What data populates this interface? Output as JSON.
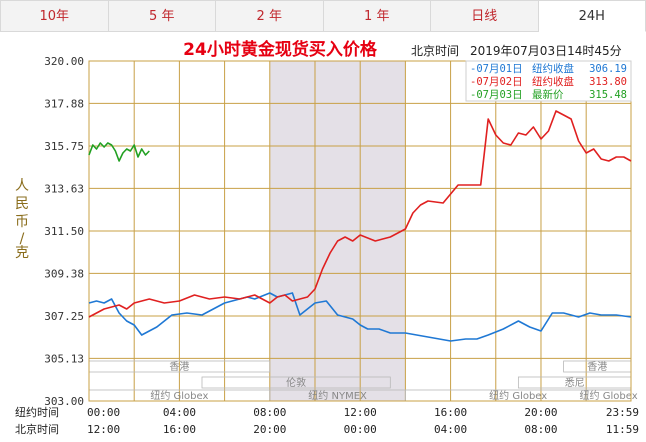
{
  "tabs": [
    {
      "label": "10年"
    },
    {
      "label": "5 年"
    },
    {
      "label": "2 年"
    },
    {
      "label": "1 年"
    },
    {
      "label": "日线"
    },
    {
      "label": "24H"
    }
  ],
  "active_tab": 5,
  "header": {
    "title": "24小时黄金现货买入价格",
    "time_label": "北京时间",
    "datetime": "2019年07月03日14时45分"
  },
  "colors": {
    "title": "#e60012",
    "grid": "#c8a046",
    "shade": "#e4e0e7",
    "axis_text": "#333333",
    "ylabel": "#8a6d1c"
  },
  "chart_data": {
    "type": "line",
    "ylabel": "人民币/克",
    "ylim": [
      303.0,
      320.0
    ],
    "y_ticks": [
      "320.00",
      "317.88",
      "315.75",
      "313.63",
      "311.50",
      "309.38",
      "307.25",
      "305.13",
      "303.00"
    ],
    "x_range_minutes": [
      0,
      1439
    ],
    "x_tick_rows": [
      {
        "label": "纽约时间",
        "ticks": [
          "00:00",
          "04:00",
          "08:00",
          "12:00",
          "16:00",
          "20:00",
          "23:59"
        ]
      },
      {
        "label": "北京时间",
        "ticks": [
          "12:00",
          "16:00",
          "20:00",
          "00:00",
          "04:00",
          "08:00",
          "11:59"
        ]
      }
    ],
    "grid": true,
    "legend_position": "top-right",
    "series": [
      {
        "name": "07月01日",
        "legend_label": "纽约收盘",
        "value_text": "306.19",
        "color": "#1f78d4",
        "x": [
          0,
          20,
          40,
          60,
          80,
          100,
          120,
          140,
          180,
          220,
          260,
          300,
          360,
          420,
          440,
          480,
          500,
          540,
          560,
          600,
          630,
          660,
          700,
          720,
          740,
          770,
          800,
          840,
          900,
          960,
          1000,
          1030,
          1060,
          1100,
          1140,
          1170,
          1200,
          1230,
          1260,
          1300,
          1330,
          1360,
          1400,
          1439
        ],
        "y": [
          307.9,
          308.0,
          307.9,
          308.1,
          307.4,
          307.0,
          306.8,
          306.3,
          306.7,
          307.3,
          307.4,
          307.3,
          307.9,
          308.2,
          308.1,
          308.4,
          308.2,
          308.4,
          307.3,
          307.9,
          308.0,
          307.3,
          307.1,
          306.8,
          306.6,
          306.6,
          306.4,
          306.4,
          306.2,
          306.0,
          306.1,
          306.1,
          306.3,
          306.6,
          307.0,
          306.7,
          306.5,
          307.4,
          307.4,
          307.2,
          307.4,
          307.3,
          307.3,
          307.2
        ]
      },
      {
        "name": "07月02日",
        "legend_label": "纽约收盘",
        "value_text": "313.80",
        "color": "#e02020",
        "x": [
          0,
          40,
          80,
          100,
          120,
          160,
          200,
          240,
          280,
          320,
          360,
          400,
          440,
          480,
          500,
          520,
          540,
          560,
          580,
          600,
          620,
          640,
          660,
          680,
          700,
          720,
          760,
          800,
          840,
          860,
          880,
          900,
          940,
          980,
          1000,
          1020,
          1040,
          1060,
          1080,
          1100,
          1120,
          1140,
          1160,
          1180,
          1200,
          1220,
          1240,
          1260,
          1280,
          1300,
          1320,
          1340,
          1360,
          1380,
          1400,
          1420,
          1439
        ],
        "y": [
          307.2,
          307.6,
          307.8,
          307.6,
          307.9,
          308.1,
          307.9,
          308.0,
          308.3,
          308.1,
          308.2,
          308.1,
          308.3,
          307.9,
          308.2,
          308.3,
          308.0,
          308.1,
          308.2,
          308.6,
          309.6,
          310.4,
          311.0,
          311.2,
          311.0,
          311.3,
          311.0,
          311.2,
          311.6,
          312.4,
          312.8,
          313.0,
          312.9,
          313.8,
          313.8,
          313.8,
          313.8,
          317.1,
          316.3,
          315.9,
          315.8,
          316.4,
          316.3,
          316.7,
          316.1,
          316.5,
          317.5,
          317.3,
          317.1,
          316.0,
          315.4,
          315.6,
          315.1,
          315.0,
          315.2,
          315.2,
          315.0
        ]
      },
      {
        "name": "07月03日",
        "legend_label": "最新价",
        "value_text": "315.48",
        "color": "#22a022",
        "x": [
          0,
          10,
          20,
          30,
          40,
          50,
          60,
          70,
          80,
          90,
          100,
          110,
          120,
          130,
          140,
          150,
          160
        ],
        "y": [
          315.3,
          315.8,
          315.6,
          315.9,
          315.7,
          315.9,
          315.8,
          315.5,
          315.0,
          315.4,
          315.6,
          315.5,
          315.8,
          315.2,
          315.6,
          315.3,
          315.5
        ]
      }
    ],
    "shaded_session": {
      "label": "纽约 NYMEX",
      "start_minute": 480,
      "end_minute": 840
    },
    "sessions": [
      {
        "label": "香港",
        "start_minute": 0,
        "end_minute": 480,
        "row": 0
      },
      {
        "label": "伦敦",
        "start_minute": 300,
        "end_minute": 800,
        "row": 1
      },
      {
        "label": "纽约 Globex",
        "start_minute": 0,
        "end_minute": 480,
        "row": 2
      },
      {
        "label": "纽约 NYMEX",
        "start_minute": 480,
        "end_minute": 840,
        "row": 2
      },
      {
        "label": "纽约 Globex",
        "start_minute": 840,
        "end_minute": 1440,
        "row": 2
      },
      {
        "label": "香港",
        "start_minute": 1260,
        "end_minute": 1440,
        "row": 0
      },
      {
        "label": "悉尼",
        "start_minute": 1140,
        "end_minute": 1440,
        "row": 1
      },
      {
        "label": "纽约 Globex",
        "start_minute": 1320,
        "end_minute": 1440,
        "row": 2
      }
    ]
  }
}
